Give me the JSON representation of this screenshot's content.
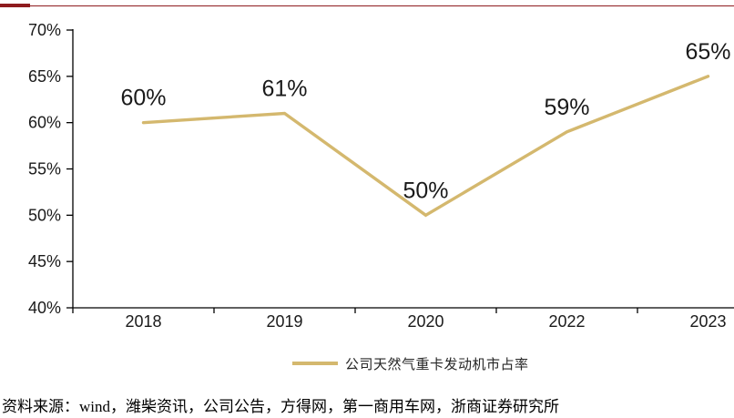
{
  "header": {
    "rule_color": "#8E1B1E"
  },
  "chart_data": {
    "type": "line",
    "categories": [
      "2018",
      "2019",
      "2020",
      "2022",
      "2023"
    ],
    "series": [
      {
        "name": "公司天然气重卡发动机市占率",
        "values": [
          60,
          61,
          50,
          59,
          65
        ]
      }
    ],
    "data_labels": [
      "60%",
      "61%",
      "50%",
      "59%",
      "65%"
    ],
    "y_ticks": [
      {
        "value": 70,
        "label": "70%"
      },
      {
        "value": 65,
        "label": "65%"
      },
      {
        "value": 60,
        "label": "60%"
      },
      {
        "value": 55,
        "label": "55%"
      },
      {
        "value": 50,
        "label": "50%"
      },
      {
        "value": 45,
        "label": "45%"
      },
      {
        "value": 40,
        "label": "40%"
      }
    ],
    "ylim": [
      40,
      70
    ],
    "y_step": 5,
    "grid": false,
    "legend_position": "bottom",
    "line_color": "#D4B86E",
    "axis_color": "#000000",
    "tick_label_color": "#1a1a1a",
    "data_label_color": "#1a1a1a"
  },
  "legend": {
    "label": "公司天然气重卡发动机市占率",
    "swatch_color": "#D4B86E"
  },
  "source": {
    "text": "资料来源：wind，潍柴资讯，公司公告，方得网，第一商用车网，浙商证券研究所"
  }
}
